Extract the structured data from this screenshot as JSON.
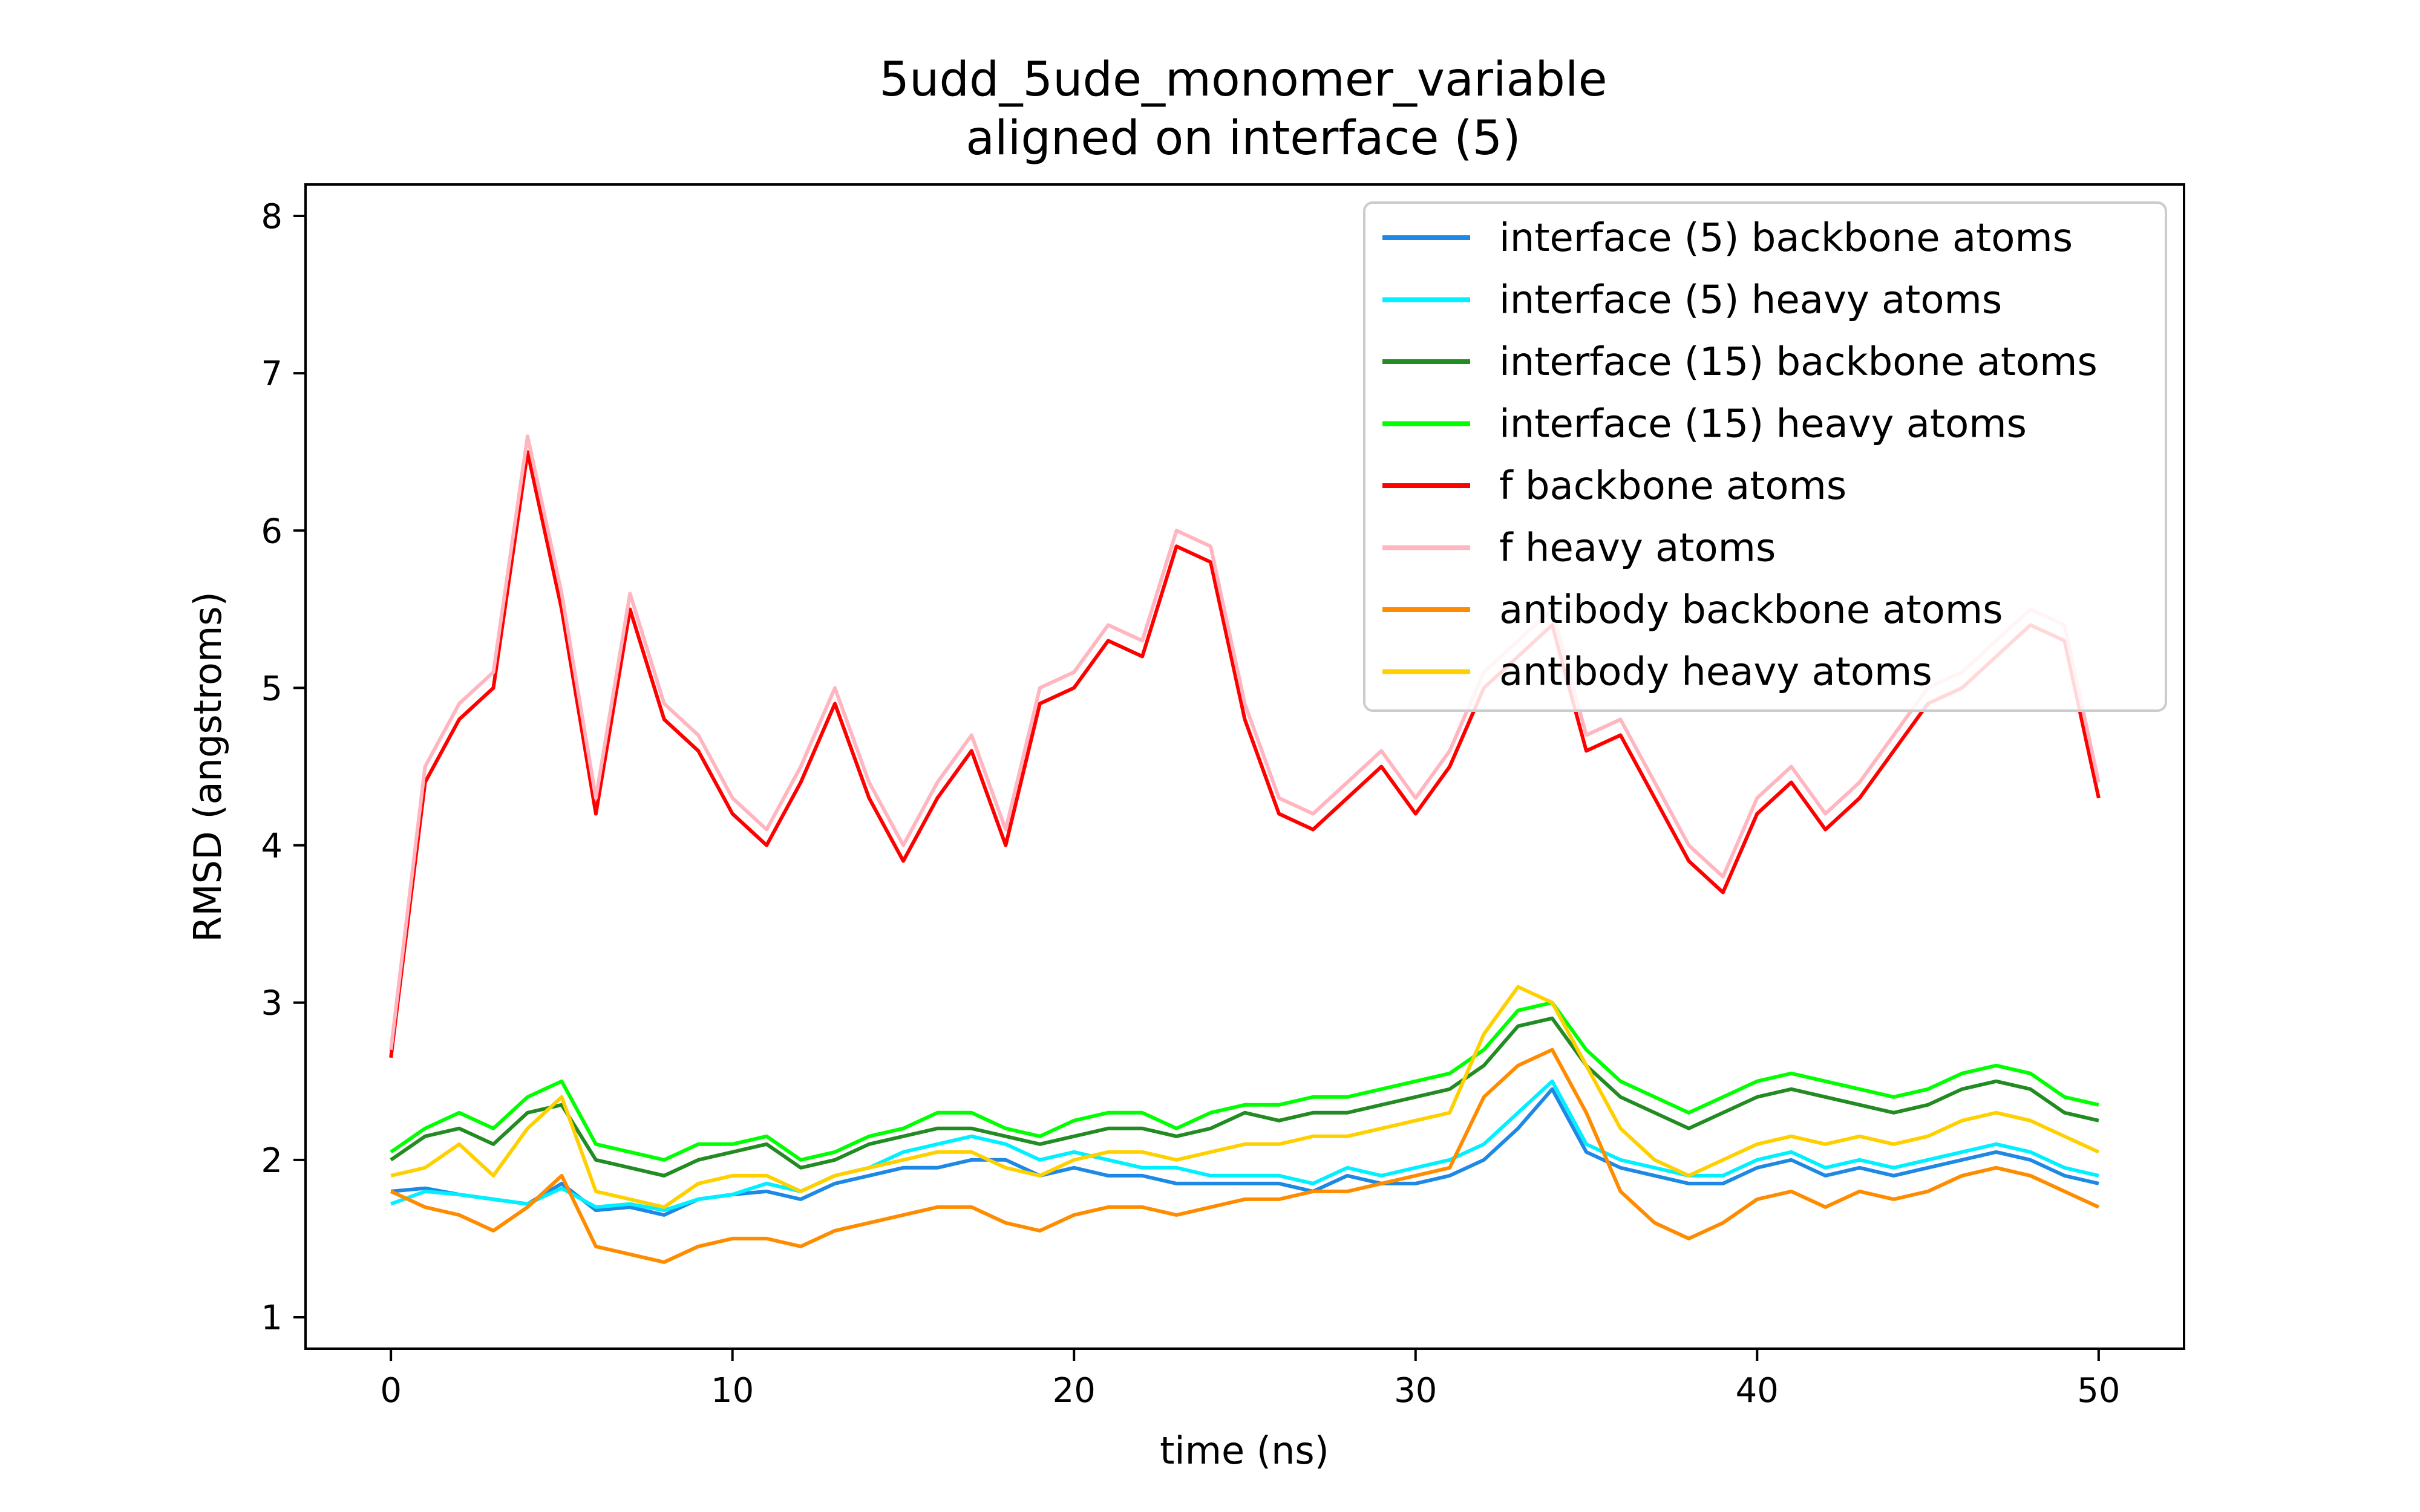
{
  "chart_data": {
    "type": "line",
    "title": "5udd_5ude_monomer_variable",
    "subtitle": "aligned on interface (5)",
    "xlabel": "time (ns)",
    "ylabel": "RMSD (angstroms)",
    "xlim": [
      -2.5,
      52.5
    ],
    "ylim": [
      0.8,
      8.2
    ],
    "xticks": [
      0,
      10,
      20,
      30,
      40,
      50
    ],
    "yticks": [
      1,
      2,
      3,
      4,
      5,
      6,
      7,
      8
    ],
    "legend_position": "top-right",
    "grid": false,
    "x": [
      0,
      1,
      2,
      3,
      4,
      5,
      6,
      7,
      8,
      9,
      10,
      11,
      12,
      13,
      14,
      15,
      16,
      17,
      18,
      19,
      20,
      21,
      22,
      23,
      24,
      25,
      26,
      27,
      28,
      29,
      30,
      31,
      32,
      33,
      34,
      35,
      36,
      37,
      38,
      39,
      40,
      41,
      42,
      43,
      44,
      45,
      46,
      47,
      48,
      49,
      50
    ],
    "series": [
      {
        "name": "interface (5) backbone atoms",
        "color": "#1e88e5",
        "values": [
          1.8,
          1.82,
          1.78,
          1.75,
          1.72,
          1.85,
          1.68,
          1.7,
          1.65,
          1.75,
          1.78,
          1.8,
          1.75,
          1.85,
          1.9,
          1.95,
          1.95,
          2.0,
          2.0,
          1.9,
          1.95,
          1.9,
          1.9,
          1.85,
          1.85,
          1.85,
          1.85,
          1.8,
          1.9,
          1.85,
          1.85,
          1.9,
          2.0,
          2.2,
          2.45,
          2.05,
          1.95,
          1.9,
          1.85,
          1.85,
          1.95,
          2.0,
          1.9,
          1.95,
          1.9,
          1.95,
          2.0,
          2.05,
          2.0,
          1.9,
          1.85
        ]
      },
      {
        "name": "interface (5) heavy atoms",
        "color": "#00f0ff",
        "values": [
          1.72,
          1.8,
          1.78,
          1.75,
          1.72,
          1.82,
          1.7,
          1.72,
          1.68,
          1.75,
          1.78,
          1.85,
          1.8,
          1.9,
          1.95,
          2.05,
          2.1,
          2.15,
          2.1,
          2.0,
          2.05,
          2.0,
          1.95,
          1.95,
          1.9,
          1.9,
          1.9,
          1.85,
          1.95,
          1.9,
          1.95,
          2.0,
          2.1,
          2.3,
          2.5,
          2.1,
          2.0,
          1.95,
          1.9,
          1.9,
          2.0,
          2.05,
          1.95,
          2.0,
          1.95,
          2.0,
          2.05,
          2.1,
          2.05,
          1.95,
          1.9
        ]
      },
      {
        "name": "interface (15) backbone atoms",
        "color": "#228b22",
        "values": [
          2.0,
          2.15,
          2.2,
          2.1,
          2.3,
          2.35,
          2.0,
          1.95,
          1.9,
          2.0,
          2.05,
          2.1,
          1.95,
          2.0,
          2.1,
          2.15,
          2.2,
          2.2,
          2.15,
          2.1,
          2.15,
          2.2,
          2.2,
          2.15,
          2.2,
          2.3,
          2.25,
          2.3,
          2.3,
          2.35,
          2.4,
          2.45,
          2.6,
          2.85,
          2.9,
          2.6,
          2.4,
          2.3,
          2.2,
          2.3,
          2.4,
          2.45,
          2.4,
          2.35,
          2.3,
          2.35,
          2.45,
          2.5,
          2.45,
          2.3,
          2.25
        ]
      },
      {
        "name": "interface (15) heavy atoms",
        "color": "#00ff00",
        "values": [
          2.05,
          2.2,
          2.3,
          2.2,
          2.4,
          2.5,
          2.1,
          2.05,
          2.0,
          2.1,
          2.1,
          2.15,
          2.0,
          2.05,
          2.15,
          2.2,
          2.3,
          2.3,
          2.2,
          2.15,
          2.25,
          2.3,
          2.3,
          2.2,
          2.3,
          2.35,
          2.35,
          2.4,
          2.4,
          2.45,
          2.5,
          2.55,
          2.7,
          2.95,
          3.0,
          2.7,
          2.5,
          2.4,
          2.3,
          2.4,
          2.5,
          2.55,
          2.5,
          2.45,
          2.4,
          2.45,
          2.55,
          2.6,
          2.55,
          2.4,
          2.35
        ]
      },
      {
        "name": "f backbone atoms",
        "color": "#ff0000",
        "values": [
          2.65,
          4.4,
          4.8,
          5.0,
          6.5,
          5.5,
          4.2,
          5.5,
          4.8,
          4.6,
          4.2,
          4.0,
          4.4,
          4.9,
          4.3,
          3.9,
          4.3,
          4.6,
          4.0,
          4.9,
          5.0,
          5.3,
          5.2,
          5.9,
          5.8,
          4.8,
          4.2,
          4.1,
          4.3,
          4.5,
          4.2,
          4.5,
          5.0,
          5.2,
          5.4,
          4.6,
          4.7,
          4.3,
          3.9,
          3.7,
          4.2,
          4.4,
          4.1,
          4.3,
          4.6,
          4.9,
          5.0,
          5.2,
          5.4,
          5.3,
          4.3
        ]
      },
      {
        "name": "f heavy atoms",
        "color": "#ffb6c1",
        "values": [
          2.7,
          4.5,
          4.9,
          5.1,
          6.6,
          5.6,
          4.3,
          5.6,
          4.9,
          4.7,
          4.3,
          4.1,
          4.5,
          5.0,
          4.4,
          4.0,
          4.4,
          4.7,
          4.1,
          5.0,
          5.1,
          5.4,
          5.3,
          6.0,
          5.9,
          4.9,
          4.3,
          4.2,
          4.4,
          4.6,
          4.3,
          4.6,
          5.1,
          5.3,
          5.5,
          4.7,
          4.8,
          4.4,
          4.0,
          3.8,
          4.3,
          4.5,
          4.2,
          4.4,
          4.7,
          5.0,
          5.1,
          5.3,
          5.5,
          5.4,
          4.4
        ]
      },
      {
        "name": "antibody backbone atoms",
        "color": "#ff8c00",
        "values": [
          1.8,
          1.7,
          1.65,
          1.55,
          1.7,
          1.9,
          1.45,
          1.4,
          1.35,
          1.45,
          1.5,
          1.5,
          1.45,
          1.55,
          1.6,
          1.65,
          1.7,
          1.7,
          1.6,
          1.55,
          1.65,
          1.7,
          1.7,
          1.65,
          1.7,
          1.75,
          1.75,
          1.8,
          1.8,
          1.85,
          1.9,
          1.95,
          2.4,
          2.6,
          2.7,
          2.3,
          1.8,
          1.6,
          1.5,
          1.6,
          1.75,
          1.8,
          1.7,
          1.8,
          1.75,
          1.8,
          1.9,
          1.95,
          1.9,
          1.8,
          1.7
        ]
      },
      {
        "name": "antibody heavy atoms",
        "color": "#ffd000",
        "values": [
          1.9,
          1.95,
          2.1,
          1.9,
          2.2,
          2.4,
          1.8,
          1.75,
          1.7,
          1.85,
          1.9,
          1.9,
          1.8,
          1.9,
          1.95,
          2.0,
          2.05,
          2.05,
          1.95,
          1.9,
          2.0,
          2.05,
          2.05,
          2.0,
          2.05,
          2.1,
          2.1,
          2.15,
          2.15,
          2.2,
          2.25,
          2.3,
          2.8,
          3.1,
          3.0,
          2.6,
          2.2,
          2.0,
          1.9,
          2.0,
          2.1,
          2.15,
          2.1,
          2.15,
          2.1,
          2.15,
          2.25,
          2.3,
          2.25,
          2.15,
          2.05
        ]
      }
    ]
  }
}
